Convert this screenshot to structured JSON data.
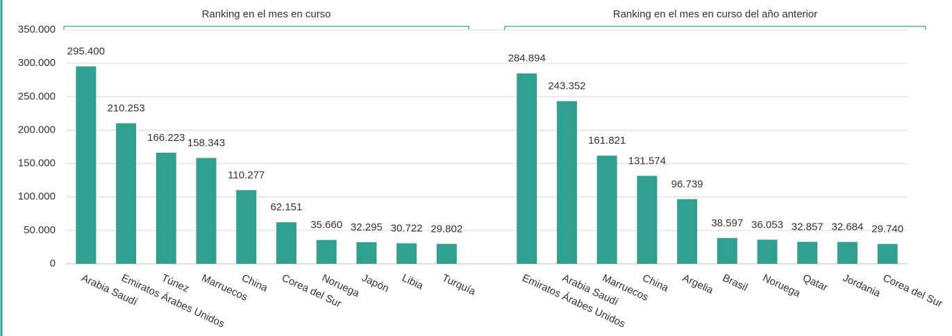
{
  "chart_data": {
    "type": "bar",
    "annotations": [
      "Ranking en el mes en curso",
      "Ranking en el mes en curso del año anterior"
    ],
    "categories": [
      "Arabia Saudí",
      "Emiratos Árabes Unidos",
      "Túnez",
      "Marruecos",
      "China",
      "Corea del Sur",
      "Noruega",
      "Japón",
      "Libia",
      "Turquía",
      null,
      "Emiratos Árabes Unidos",
      "Arabia Saudí",
      "Marruecos",
      "China",
      "Argelia",
      "Brasil",
      "Noruega",
      "Qatar",
      "Jordania",
      "Corea del Sur"
    ],
    "values": [
      295400,
      210253,
      166223,
      158343,
      110277,
      62151,
      35660,
      32295,
      30722,
      29802,
      null,
      284894,
      243352,
      161821,
      131574,
      96739,
      38597,
      36053,
      32857,
      32684,
      29740
    ],
    "value_labels": [
      "295.400",
      "210.253",
      "166.223",
      "158.343",
      "110.277",
      "62.151",
      "35.660",
      "32.295",
      "30.722",
      "29.802",
      null,
      "284.894",
      "243.352",
      "161.821",
      "131.574",
      "96.739",
      "38.597",
      "36.053",
      "32.857",
      "32.684",
      "29.740"
    ],
    "color": "#31a091",
    "ylim": [
      0,
      350000
    ],
    "yticks": [
      0,
      {
        "value": 50000,
        "label": "50.000"
      },
      {
        "value": 100000,
        "label": "100.000"
      },
      {
        "value": 150000,
        "label": "150.000"
      },
      {
        "value": 200000,
        "label": "200.000"
      },
      {
        "value": 250000,
        "label": "250.000"
      },
      {
        "value": 300000,
        "label": "300.000"
      },
      {
        "value": 350000,
        "label": "350.000"
      }
    ],
    "grid": true
  }
}
